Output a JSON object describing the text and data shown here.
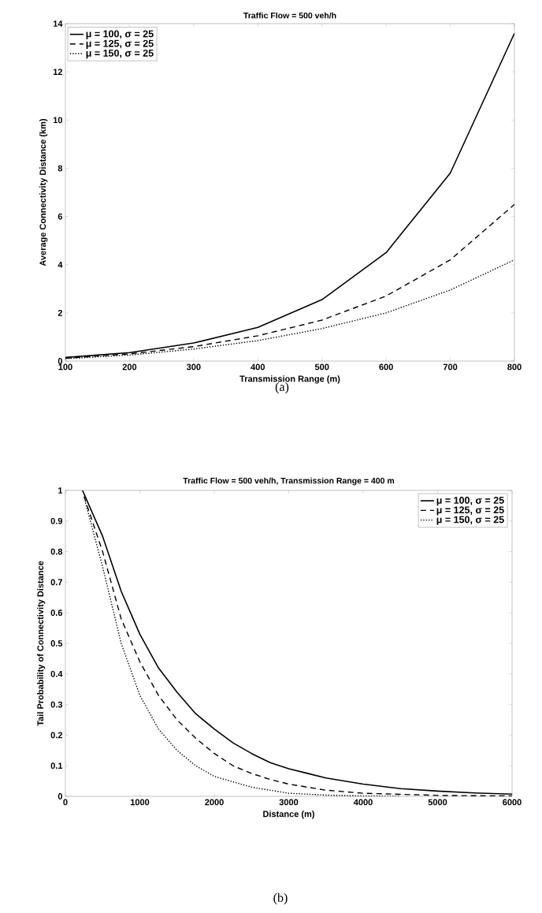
{
  "chart_data": [
    {
      "type": "line",
      "title": "Traffic Flow = 500 veh/h",
      "xlabel": "Transmission Range (m)",
      "ylabel": "Average Connectivity Distance (km)",
      "x": [
        100,
        200,
        300,
        400,
        500,
        600,
        700,
        800
      ],
      "series": [
        {
          "name": "μ = 100,  σ = 25",
          "color": "#000000",
          "line_style": "solid",
          "values": [
            0.15,
            0.35,
            0.75,
            1.4,
            2.55,
            4.5,
            7.8,
            13.6
          ]
        },
        {
          "name": "μ = 125,  σ = 25",
          "color": "#000000",
          "line_style": "dashed",
          "values": [
            0.12,
            0.3,
            0.6,
            1.05,
            1.7,
            2.7,
            4.2,
            6.5
          ]
        },
        {
          "name": "μ = 150,  σ = 25",
          "color": "#000000",
          "line_style": "dotted",
          "values": [
            0.1,
            0.25,
            0.5,
            0.85,
            1.35,
            2.0,
            2.95,
            4.2
          ]
        }
      ],
      "xlim": [
        100,
        800
      ],
      "xticks": [
        100,
        200,
        300,
        400,
        500,
        600,
        700,
        800
      ],
      "ylim": [
        0,
        14
      ],
      "yticks": [
        0,
        2,
        4,
        6,
        8,
        10,
        12,
        14
      ],
      "legend": "top left",
      "annotations": [
        "(a)"
      ]
    },
    {
      "type": "line",
      "title": "Traffic Flow = 500 veh/h, Transmission Range = 400 m",
      "xlabel": "Distance (m)",
      "ylabel": "Tail Probability of Connectivity Distance",
      "series": [
        {
          "name": "μ = 100,  σ = 25",
          "color": "#000000",
          "line_style": "solid",
          "x": [
            230,
            500,
            750,
            1000,
            1250,
            1500,
            1750,
            2000,
            2250,
            2500,
            2750,
            3000,
            3250,
            3500,
            4000,
            4500,
            5000,
            5500,
            6000
          ],
          "values": [
            1.0,
            0.85,
            0.67,
            0.53,
            0.42,
            0.34,
            0.27,
            0.22,
            0.175,
            0.14,
            0.11,
            0.09,
            0.075,
            0.06,
            0.04,
            0.025,
            0.017,
            0.011,
            0.007
          ]
        },
        {
          "name": "μ = 125,  σ = 25",
          "color": "#000000",
          "line_style": "dashed",
          "x": [
            250,
            500,
            750,
            1000,
            1250,
            1500,
            1750,
            2000,
            2250,
            2500,
            2750,
            3000,
            3500,
            4000,
            5000,
            6000
          ],
          "values": [
            0.98,
            0.8,
            0.58,
            0.44,
            0.33,
            0.25,
            0.19,
            0.14,
            0.1,
            0.075,
            0.055,
            0.04,
            0.02,
            0.01,
            0.003,
            0.001
          ]
        },
        {
          "name": "μ = 150,  σ = 25",
          "color": "#000000",
          "line_style": "dotted",
          "x": [
            270,
            500,
            750,
            1000,
            1250,
            1500,
            1750,
            2000,
            2500,
            3000,
            3500,
            4000,
            4500
          ],
          "values": [
            0.96,
            0.75,
            0.5,
            0.33,
            0.22,
            0.15,
            0.1,
            0.065,
            0.03,
            0.01,
            0.004,
            0.001,
            0.0
          ]
        }
      ],
      "xlim": [
        0,
        6000
      ],
      "xticks": [
        0,
        1000,
        2000,
        3000,
        4000,
        5000,
        6000
      ],
      "ylim": [
        0,
        1
      ],
      "yticks": [
        0,
        0.1,
        0.2,
        0.3,
        0.4,
        0.5,
        0.6,
        0.7,
        0.8,
        0.9,
        1
      ],
      "legend": "top right",
      "annotations": [
        "(b)"
      ]
    }
  ]
}
